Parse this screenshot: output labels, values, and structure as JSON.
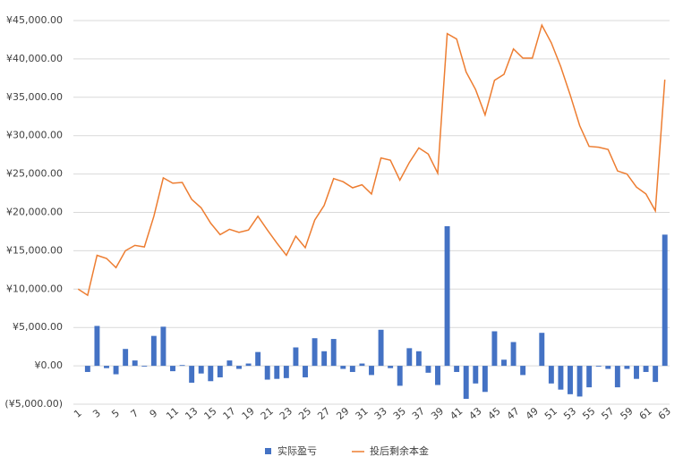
{
  "chart_data": {
    "type": "bar-line",
    "categories": [
      "1",
      null,
      "3",
      null,
      "5",
      null,
      "7",
      null,
      "9",
      null,
      "11",
      null,
      "13",
      null,
      "15",
      null,
      "17",
      null,
      "19",
      null,
      "21",
      null,
      "23",
      null,
      "25",
      null,
      "27",
      null,
      "29",
      null,
      "31",
      null,
      "33",
      null,
      "35",
      null,
      "37",
      null,
      "39",
      null,
      "41",
      null,
      "43",
      null,
      "45",
      null,
      "47",
      null,
      "49",
      null,
      "51",
      null,
      "53",
      null,
      "55",
      null,
      "57",
      null,
      "59",
      null,
      "61",
      null,
      "63"
    ],
    "series": [
      {
        "name": "实际盈亏",
        "type": "bar",
        "color": "#4472c4",
        "values": [
          0,
          -800,
          5200,
          -300,
          -1100,
          2200,
          700,
          -100,
          3900,
          5100,
          -700,
          100,
          -2200,
          -1000,
          -2000,
          -1500,
          700,
          -400,
          300,
          1800,
          -1800,
          -1700,
          -1600,
          2400,
          -1500,
          3600,
          1900,
          3500,
          -400,
          -800,
          300,
          -1200,
          4700,
          -300,
          -2600,
          2300,
          1900,
          -900,
          -2500,
          18200,
          -800,
          -4300,
          -2300,
          -3400,
          4500,
          800,
          3100,
          -1200,
          0,
          4300,
          -2300,
          -3100,
          -3700,
          -4000,
          -2800,
          -100,
          -400,
          -2800,
          -400,
          -1700,
          -800,
          -2100,
          17100
        ]
      },
      {
        "name": "投后剩余本金",
        "type": "line",
        "color": "#ed7d31",
        "values": [
          10000,
          9200,
          14400,
          14000,
          12800,
          15000,
          15700,
          15500,
          19500,
          24500,
          23800,
          23900,
          21700,
          20600,
          18600,
          17100,
          17800,
          17400,
          17700,
          19500,
          17700,
          16000,
          14400,
          16900,
          15400,
          19000,
          20900,
          24400,
          24000,
          23200,
          23600,
          22400,
          27100,
          26800,
          24200,
          26500,
          28400,
          27600,
          25100,
          43300,
          42600,
          38300,
          36000,
          32700,
          37200,
          38000,
          41300,
          40100,
          40100,
          44400,
          42100,
          39000,
          35300,
          31300,
          28600,
          28500,
          28200,
          25400,
          25000,
          23300,
          22400,
          20200,
          37300
        ]
      }
    ],
    "ylim": [
      -5000,
      45000
    ],
    "yticks": [
      {
        "value": -5000,
        "label": "(¥5,000.00)"
      },
      {
        "value": 0,
        "label": "¥0.00"
      },
      {
        "value": 5000,
        "label": "¥5,000.00"
      },
      {
        "value": 10000,
        "label": "¥10,000.00"
      },
      {
        "value": 15000,
        "label": "¥15,000.00"
      },
      {
        "value": 20000,
        "label": "¥20,000.00"
      },
      {
        "value": 25000,
        "label": "¥25,000.00"
      },
      {
        "value": 30000,
        "label": "¥30,000.00"
      },
      {
        "value": 35000,
        "label": "¥35,000.00"
      },
      {
        "value": 40000,
        "label": "¥40,000.00"
      },
      {
        "value": 45000,
        "label": "¥45,000.00"
      }
    ],
    "grid": true,
    "legend": "bottom"
  }
}
